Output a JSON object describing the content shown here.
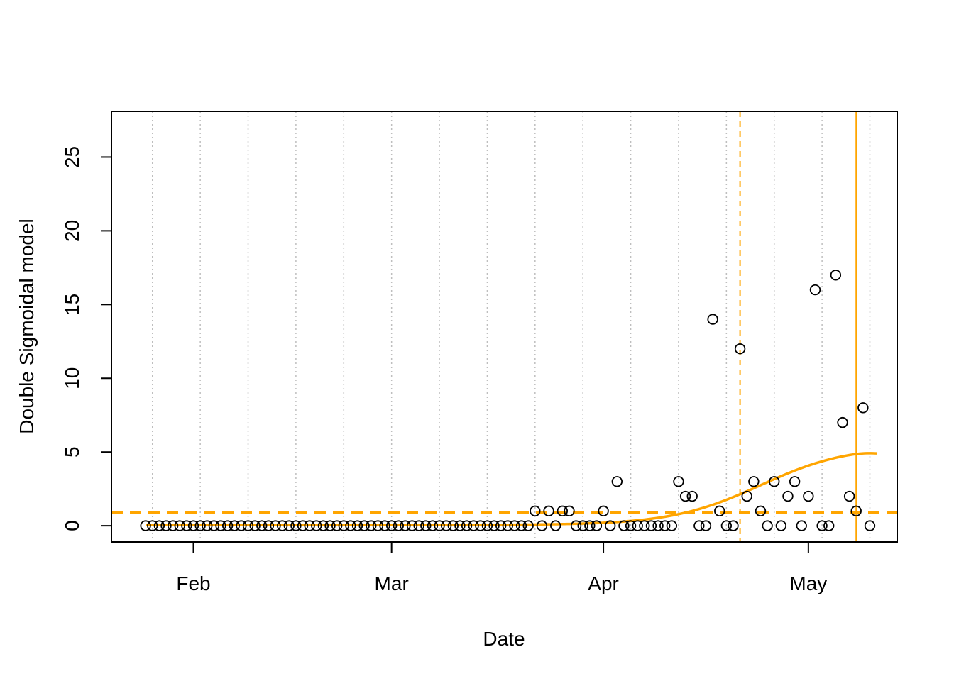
{
  "chart_data": {
    "type": "scatter",
    "title": "",
    "xlabel": "Date",
    "ylabel": "Double Sigmoidal model",
    "x_axis": {
      "type": "date",
      "ticks": [
        {
          "date": "2020-02-01",
          "label": "Feb"
        },
        {
          "date": "2020-03-01",
          "label": "Mar"
        },
        {
          "date": "2020-04-01",
          "label": "Apr"
        },
        {
          "date": "2020-05-01",
          "label": "May"
        }
      ]
    },
    "xlim": [
      "2020-01-20",
      "2020-05-14"
    ],
    "y_axis": {
      "ticks": [
        0,
        5,
        10,
        15,
        20,
        25
      ]
    },
    "ylim": [
      -1.1,
      28.1
    ],
    "grid": {
      "vertical": true,
      "style": "dotted",
      "color": "#bebebe",
      "dates": [
        "2020-01-26",
        "2020-02-02",
        "2020-02-09",
        "2020-02-16",
        "2020-02-23",
        "2020-03-01",
        "2020-03-08",
        "2020-03-15",
        "2020-03-22",
        "2020-03-29",
        "2020-04-05",
        "2020-04-12",
        "2020-04-19",
        "2020-04-26",
        "2020-05-03",
        "2020-05-10"
      ]
    },
    "series": [
      {
        "type": "scatter",
        "marker": "open-circle",
        "color": "#000000",
        "start_date": "2020-01-25",
        "values": [
          0,
          0,
          0,
          0,
          0,
          0,
          0,
          0,
          0,
          0,
          0,
          0,
          0,
          0,
          0,
          0,
          0,
          0,
          0,
          0,
          0,
          0,
          0,
          0,
          0,
          0,
          0,
          0,
          0,
          0,
          0,
          0,
          0,
          0,
          0,
          0,
          0,
          0,
          0,
          0,
          0,
          0,
          0,
          0,
          0,
          0,
          0,
          0,
          0,
          0,
          0,
          0,
          0,
          0,
          0,
          0,
          0,
          1,
          0,
          1,
          0,
          1,
          1,
          0,
          0,
          0,
          0,
          1,
          0,
          3,
          0,
          0,
          0,
          0,
          0,
          0,
          0,
          0,
          3,
          2,
          2,
          0,
          0,
          14,
          1,
          0,
          0,
          12,
          2,
          3,
          1,
          0,
          3,
          0,
          2,
          3,
          0,
          2,
          16,
          0,
          0,
          17,
          7,
          2,
          1,
          8,
          0
        ]
      },
      {
        "type": "line",
        "color": "#ffa500",
        "style": "solid",
        "x_start": "2020-01-25",
        "x_end": "2020-05-11",
        "curve": {
          "baseline": 0.05,
          "amplitude": 5.4,
          "midpoint": "2020-04-24",
          "slope_days": 6.5,
          "decay_amplitude": 0.35,
          "decay_midpoint": "2020-05-11",
          "decay_slope_days": 1.2
        }
      }
    ],
    "reference_lines": [
      {
        "orientation": "horizontal",
        "value": 0.9,
        "color": "#ffa500",
        "style": "dashed"
      },
      {
        "orientation": "vertical",
        "date": "2020-04-21",
        "color": "#ffa500",
        "style": "dashed"
      },
      {
        "orientation": "vertical",
        "date": "2020-05-08",
        "color": "#ffa500",
        "style": "solid"
      }
    ]
  }
}
